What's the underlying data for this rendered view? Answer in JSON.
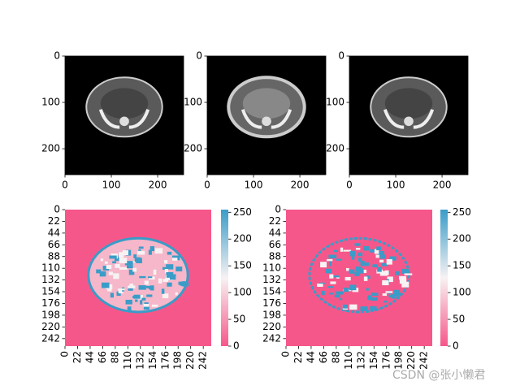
{
  "chart_data": [
    {
      "type": "image",
      "xlim": [
        0,
        256
      ],
      "ylim": [
        256,
        0
      ],
      "xticks": [
        0,
        100,
        200
      ],
      "yticks": [
        0,
        100,
        200
      ]
    },
    {
      "type": "image",
      "xlim": [
        0,
        256
      ],
      "ylim": [
        256,
        0
      ],
      "xticks": [
        0,
        100,
        200
      ],
      "yticks": [
        0,
        100,
        200
      ]
    },
    {
      "type": "image",
      "xlim": [
        0,
        256
      ],
      "ylim": [
        256,
        0
      ],
      "xticks": [
        0,
        100,
        200
      ],
      "yticks": [
        0,
        100,
        200
      ]
    },
    {
      "type": "heatmap",
      "xlim": [
        0,
        256
      ],
      "ylim": [
        256,
        0
      ],
      "xticks": [
        0,
        22,
        44,
        66,
        88,
        110,
        132,
        154,
        176,
        198,
        220,
        242
      ],
      "yticks": [
        0,
        22,
        44,
        66,
        88,
        110,
        132,
        154,
        176,
        198,
        220,
        242
      ],
      "colorbar": {
        "lim": [
          0,
          255
        ],
        "ticks": [
          0,
          50,
          100,
          150,
          200,
          250
        ],
        "colors": [
          "#f6578a",
          "#f7f2f3",
          "#3a9cc8"
        ]
      }
    },
    {
      "type": "heatmap",
      "xlim": [
        0,
        256
      ],
      "ylim": [
        256,
        0
      ],
      "xticks": [
        0,
        22,
        44,
        66,
        88,
        110,
        132,
        154,
        176,
        198,
        220,
        242
      ],
      "yticks": [
        0,
        22,
        44,
        66,
        88,
        110,
        132,
        154,
        176,
        198,
        220,
        242
      ],
      "colorbar": {
        "lim": [
          0,
          255
        ],
        "ticks": [
          0,
          50,
          100,
          150,
          200,
          250
        ],
        "colors": [
          "#f6578a",
          "#f7f2f3",
          "#3a9cc8"
        ]
      }
    }
  ],
  "watermark": "CSDN @张小懒君"
}
